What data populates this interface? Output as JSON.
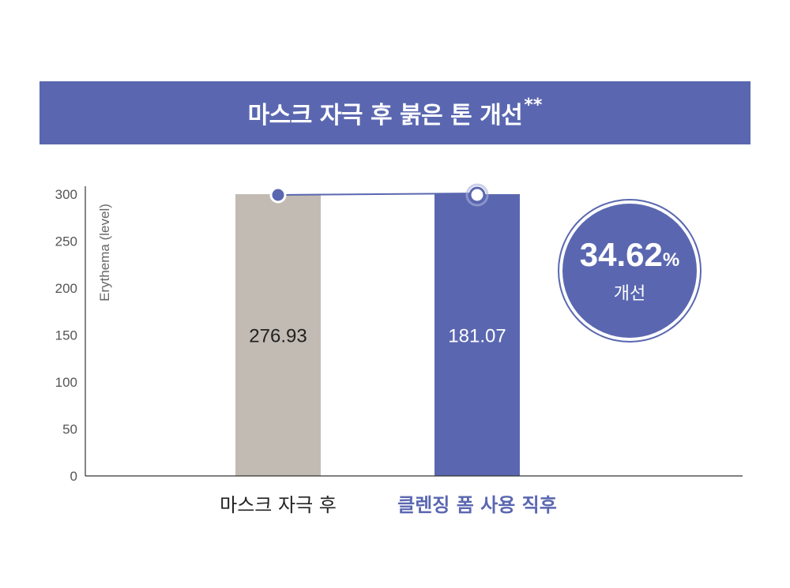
{
  "banner": {
    "title": "마스크 자극 후 붉은 톤 개선",
    "note": "**"
  },
  "chart_data": {
    "type": "bar",
    "title": "마스크 자극 후 붉은 톤 개선**",
    "xlabel": "",
    "ylabel": "Erythema (level)",
    "ylim": [
      0,
      300
    ],
    "yticks": [
      0,
      50,
      100,
      150,
      200,
      250,
      300
    ],
    "categories": [
      "마스크 자극 후",
      "클렌징 폼 사용 직후"
    ],
    "values": [
      276.93,
      181.07
    ],
    "data_labels": [
      "276.93",
      "181.07"
    ],
    "bar_colors": [
      "#c2bbb3",
      "#5a67b0"
    ],
    "grid": false,
    "legend": "none",
    "annotation": {
      "value": "34.62",
      "unit": "%",
      "text": "개선"
    }
  },
  "colors": {
    "accent": "#5a67b0",
    "bar_before": "#c2bbb3",
    "axis": "#333333"
  }
}
